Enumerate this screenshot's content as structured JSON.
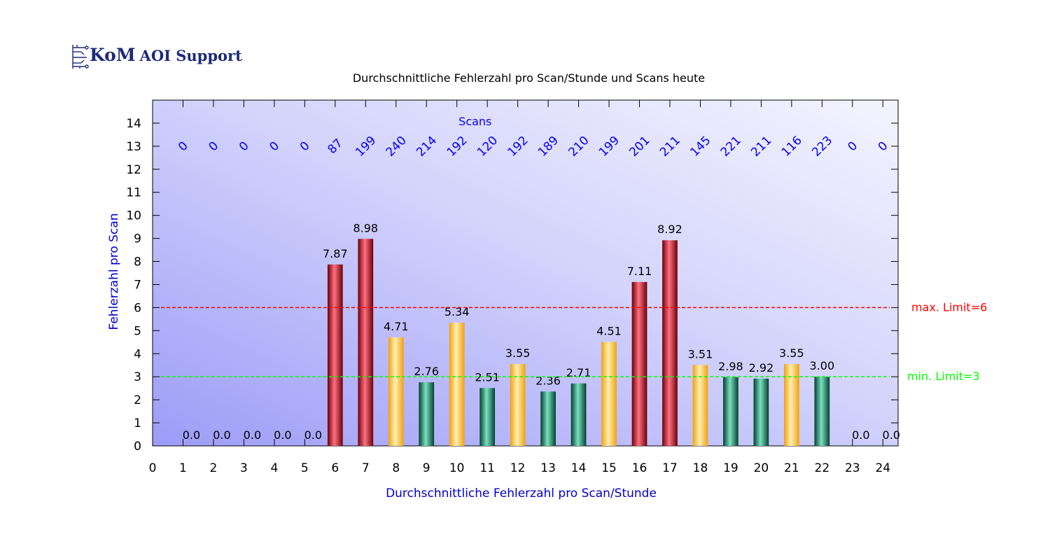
{
  "logo": {
    "brand": "KoM",
    "product": "AOI Support"
  },
  "chart_data": {
    "type": "bar",
    "title": "Durchschnittliche Fehlerzahl pro Scan/Stunde und Scans heute",
    "xlabel": "Durchschnittliche Fehlerzahl pro Scan/Stunde",
    "ylabel": "Fehlerzahl pro Scan",
    "xlim": [
      0,
      24.5
    ],
    "ylim": [
      0,
      15
    ],
    "x_ticks": [
      0,
      1,
      2,
      3,
      4,
      5,
      6,
      7,
      8,
      9,
      10,
      11,
      12,
      13,
      14,
      15,
      16,
      17,
      18,
      19,
      20,
      21,
      22,
      23,
      24
    ],
    "y_ticks": [
      0,
      1,
      2,
      3,
      4,
      5,
      6,
      7,
      8,
      9,
      10,
      11,
      12,
      13,
      14
    ],
    "categories": [
      1,
      2,
      3,
      4,
      5,
      6,
      7,
      8,
      9,
      10,
      11,
      12,
      13,
      14,
      15,
      16,
      17,
      18,
      19,
      20,
      21,
      22,
      23,
      24
    ],
    "values": [
      0,
      0,
      0,
      0,
      0,
      7.87,
      8.98,
      4.71,
      2.76,
      5.34,
      2.51,
      3.55,
      2.36,
      2.71,
      4.51,
      7.11,
      8.92,
      3.51,
      2.98,
      2.92,
      3.55,
      3.0,
      0,
      0
    ],
    "value_labels": [
      "0.0",
      "0.0",
      "0.0",
      "0.0",
      "0.0",
      "7.87",
      "8.98",
      "4.71",
      "2.76",
      "5.34",
      "2.51",
      "3.55",
      "2.36",
      "2.71",
      "4.51",
      "7.11",
      "8.92",
      "3.51",
      "2.98",
      "2.92",
      "3.55",
      "3.00",
      "0.0",
      "0.0"
    ],
    "scans_header": "Scans",
    "scans": [
      "0",
      "0",
      "0",
      "0",
      "0",
      "87",
      "199",
      "240",
      "214",
      "192",
      "120",
      "192",
      "189",
      "210",
      "199",
      "201",
      "211",
      "145",
      "221",
      "211",
      "116",
      "223",
      "0",
      "0"
    ],
    "limits": [
      {
        "name": "max",
        "value": 6,
        "label": "max. Limit=6",
        "color": "#ff0000"
      },
      {
        "name": "min",
        "value": 3,
        "label": "min. Limit=3",
        "color": "#00ff00"
      }
    ],
    "colors": {
      "high": "#aa0010",
      "mid": "#ffb020",
      "low": "#0c5a44",
      "scans": "#0000ff",
      "axis_label": "#0000cc"
    }
  }
}
